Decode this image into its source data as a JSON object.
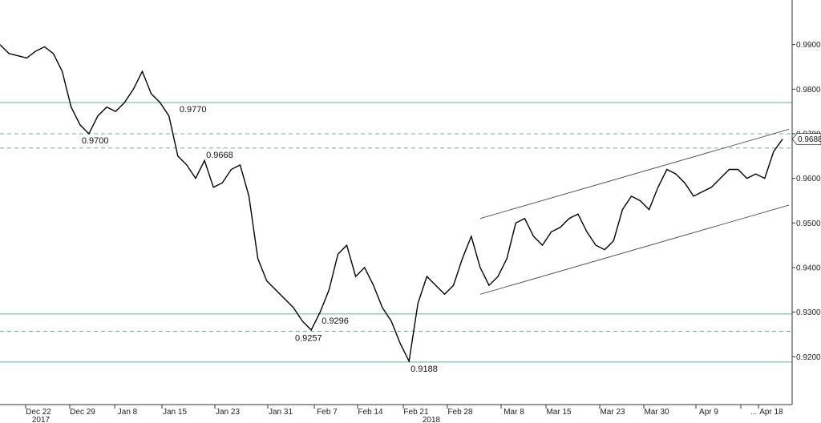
{
  "chart_data": {
    "type": "line",
    "title": "",
    "xlabel": "",
    "ylabel": "",
    "ylim": [
      0.9125,
      1.0
    ],
    "grid": false,
    "y_ticks": [
      "0.9200",
      "0.9300",
      "0.9400",
      "0.9500",
      "0.9600",
      "0.9700",
      "0.9800",
      "0.9900"
    ],
    "y_tick_values": [
      0.92,
      0.93,
      0.94,
      0.95,
      0.96,
      0.97,
      0.98,
      0.99
    ],
    "x_ticks": [
      "Dec 22",
      "Dec 29",
      "Jan 8",
      "Jan 15",
      "Jan 23",
      "Jan 31",
      "Feb 7",
      "Feb 14",
      "Feb 21",
      "Feb 28",
      "Mar 8",
      "Mar 15",
      "Mar 23",
      "Mar 30",
      "Apr 9",
      "...",
      "Apr 18"
    ],
    "year_labels": [
      "2017",
      "2018"
    ],
    "last_value": "0.9688",
    "series": [
      {
        "x": [
          "Dec 18",
          "Dec 19",
          "Dec 20",
          "Dec 21",
          "Dec 22",
          "Dec 25",
          "Dec 26",
          "Dec 27",
          "Dec 28",
          "Dec 29",
          "Jan 1",
          "Jan 2",
          "Jan 3",
          "Jan 4",
          "Jan 5",
          "Jan 8",
          "Jan 9",
          "Jan 10",
          "Jan 11",
          "Jan 12",
          "Jan 15",
          "Jan 16",
          "Jan 17",
          "Jan 18",
          "Jan 19",
          "Jan 22",
          "Jan 23",
          "Jan 24",
          "Jan 25",
          "Jan 26",
          "Jan 29",
          "Jan 30",
          "Jan 31",
          "Feb 1",
          "Feb 2",
          "Feb 5",
          "Feb 6",
          "Feb 7",
          "Feb 8",
          "Feb 9",
          "Feb 12",
          "Feb 13",
          "Feb 14",
          "Feb 15",
          "Feb 16",
          "Feb 19",
          "Feb 20",
          "Feb 21",
          "Feb 22",
          "Feb 23",
          "Feb 26",
          "Feb 27",
          "Feb 28",
          "Mar 1",
          "Mar 2",
          "Mar 5",
          "Mar 6",
          "Mar 7",
          "Mar 8",
          "Mar 9",
          "Mar 12",
          "Mar 13",
          "Mar 14",
          "Mar 15",
          "Mar 16",
          "Mar 19",
          "Mar 20",
          "Mar 21",
          "Mar 22",
          "Mar 23",
          "Mar 26",
          "Mar 27",
          "Mar 28",
          "Mar 29",
          "Mar 30",
          "Apr 2",
          "Apr 3",
          "Apr 4",
          "Apr 5",
          "Apr 6",
          "Apr 9",
          "Apr 10",
          "Apr 11",
          "Apr 12",
          "Apr 13",
          "Apr 16",
          "Apr 17",
          "Apr 18",
          "Apr 19"
        ],
        "y": [
          0.99,
          0.988,
          0.9875,
          0.987,
          0.9885,
          0.9895,
          0.988,
          0.984,
          0.976,
          0.972,
          0.97,
          0.974,
          0.976,
          0.975,
          0.977,
          0.98,
          0.984,
          0.979,
          0.977,
          0.974,
          0.965,
          0.963,
          0.96,
          0.964,
          0.958,
          0.959,
          0.962,
          0.963,
          0.956,
          0.942,
          0.937,
          0.935,
          0.933,
          0.931,
          0.928,
          0.926,
          0.93,
          0.935,
          0.943,
          0.945,
          0.938,
          0.94,
          0.936,
          0.931,
          0.928,
          0.923,
          0.919,
          0.932,
          0.938,
          0.936,
          0.934,
          0.936,
          0.942,
          0.947,
          0.94,
          0.936,
          0.938,
          0.942,
          0.95,
          0.951,
          0.947,
          0.945,
          0.948,
          0.949,
          0.951,
          0.952,
          0.948,
          0.945,
          0.944,
          0.946,
          0.953,
          0.956,
          0.955,
          0.953,
          0.958,
          0.962,
          0.961,
          0.959,
          0.956,
          0.957,
          0.958,
          0.96,
          0.962,
          0.962,
          0.96,
          0.961,
          0.96,
          0.966,
          0.9688
        ]
      }
    ],
    "h_levels": [
      {
        "value": 0.977,
        "label": "0.9770",
        "style": "solid",
        "label_x": "Jan 15"
      },
      {
        "value": 0.97,
        "label": "0.9700",
        "style": "dashed",
        "label_x": "Dec 29"
      },
      {
        "value": 0.9668,
        "label": "0.9668",
        "style": "dashed",
        "label_x": "Jan 18"
      },
      {
        "value": 0.9296,
        "label": "0.9296",
        "style": "solid",
        "label_x": "Feb 6"
      },
      {
        "value": 0.9257,
        "label": "0.9257",
        "style": "dashed",
        "label_x": "Feb 1"
      },
      {
        "value": 0.9188,
        "label": "0.9188",
        "style": "solid",
        "label_x": "Feb 20"
      }
    ],
    "channel": {
      "upper": {
        "start": [
          "Mar 2",
          0.951
        ],
        "end": [
          "Apr 19",
          0.971
        ]
      },
      "lower": {
        "start": [
          "Mar 2",
          0.934
        ],
        "end": [
          "Apr 19",
          0.954
        ]
      }
    },
    "colors": {
      "price": "#000000",
      "level": "#5fb49a",
      "channel": "#333333",
      "axis": "#333333"
    }
  }
}
